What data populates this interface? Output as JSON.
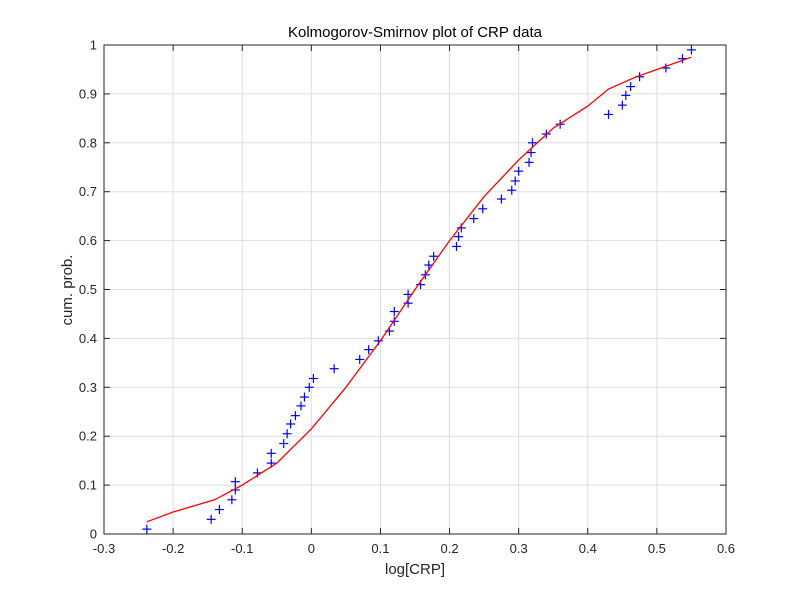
{
  "chart_data": {
    "type": "scatter",
    "title": "Kolmogorov-Smirnov plot of CRP data",
    "xlabel": "log[CRP]",
    "ylabel": "cum. prob.",
    "xlim": [
      -0.3,
      0.6
    ],
    "ylim": [
      0,
      1
    ],
    "xticks": [
      -0.3,
      -0.2,
      -0.1,
      0,
      0.1,
      0.2,
      0.3,
      0.4,
      0.5,
      0.6
    ],
    "xtick_labels": [
      "-0.3",
      "-0.2",
      "-0.1",
      "0",
      "0.1",
      "0.2",
      "0.3",
      "0.4",
      "0.5",
      "0.6"
    ],
    "yticks": [
      0,
      0.1,
      0.2,
      0.3,
      0.4,
      0.5,
      0.6,
      0.7,
      0.8,
      0.9,
      1
    ],
    "ytick_labels": [
      "0",
      "0.1",
      "0.2",
      "0.3",
      "0.4",
      "0.5",
      "0.6",
      "0.7",
      "0.8",
      "0.9",
      "1"
    ],
    "grid": true,
    "series": [
      {
        "marker": "plus",
        "color": "#0000ff",
        "points": [
          [
            -0.238,
            0.01
          ],
          [
            -0.145,
            0.03
          ],
          [
            -0.133,
            0.05
          ],
          [
            -0.115,
            0.07
          ],
          [
            -0.11,
            0.09
          ],
          [
            -0.11,
            0.107
          ],
          [
            -0.078,
            0.125
          ],
          [
            -0.058,
            0.145
          ],
          [
            -0.058,
            0.165
          ],
          [
            -0.04,
            0.185
          ],
          [
            -0.035,
            0.205
          ],
          [
            -0.03,
            0.225
          ],
          [
            -0.023,
            0.242
          ],
          [
            -0.015,
            0.262
          ],
          [
            -0.01,
            0.28
          ],
          [
            -0.003,
            0.3
          ],
          [
            0.003,
            0.318
          ],
          [
            0.033,
            0.338
          ],
          [
            0.07,
            0.357
          ],
          [
            0.083,
            0.377
          ],
          [
            0.097,
            0.395
          ],
          [
            0.113,
            0.415
          ],
          [
            0.12,
            0.435
          ],
          [
            0.12,
            0.455
          ],
          [
            0.14,
            0.472
          ],
          [
            0.14,
            0.49
          ],
          [
            0.158,
            0.51
          ],
          [
            0.165,
            0.53
          ],
          [
            0.17,
            0.55
          ],
          [
            0.177,
            0.568
          ],
          [
            0.21,
            0.588
          ],
          [
            0.213,
            0.608
          ],
          [
            0.217,
            0.626
          ],
          [
            0.235,
            0.645
          ],
          [
            0.248,
            0.665
          ],
          [
            0.275,
            0.685
          ],
          [
            0.29,
            0.703
          ],
          [
            0.295,
            0.722
          ],
          [
            0.3,
            0.742
          ],
          [
            0.315,
            0.76
          ],
          [
            0.318,
            0.78
          ],
          [
            0.32,
            0.8
          ],
          [
            0.34,
            0.818
          ],
          [
            0.36,
            0.838
          ],
          [
            0.43,
            0.858
          ],
          [
            0.45,
            0.877
          ],
          [
            0.455,
            0.897
          ],
          [
            0.462,
            0.915
          ],
          [
            0.475,
            0.935
          ],
          [
            0.513,
            0.953
          ],
          [
            0.537,
            0.972
          ],
          [
            0.55,
            0.99
          ]
        ]
      },
      {
        "marker": "line",
        "color": "#ff0000",
        "points": [
          [
            -0.238,
            0.025
          ],
          [
            -0.2,
            0.045
          ],
          [
            -0.14,
            0.07
          ],
          [
            -0.1,
            0.1
          ],
          [
            -0.05,
            0.145
          ],
          [
            0.0,
            0.215
          ],
          [
            0.05,
            0.3
          ],
          [
            0.1,
            0.395
          ],
          [
            0.15,
            0.5
          ],
          [
            0.2,
            0.6
          ],
          [
            0.25,
            0.69
          ],
          [
            0.3,
            0.765
          ],
          [
            0.35,
            0.83
          ],
          [
            0.4,
            0.875
          ],
          [
            0.43,
            0.91
          ],
          [
            0.47,
            0.935
          ],
          [
            0.5,
            0.95
          ],
          [
            0.55,
            0.975
          ]
        ]
      }
    ]
  }
}
